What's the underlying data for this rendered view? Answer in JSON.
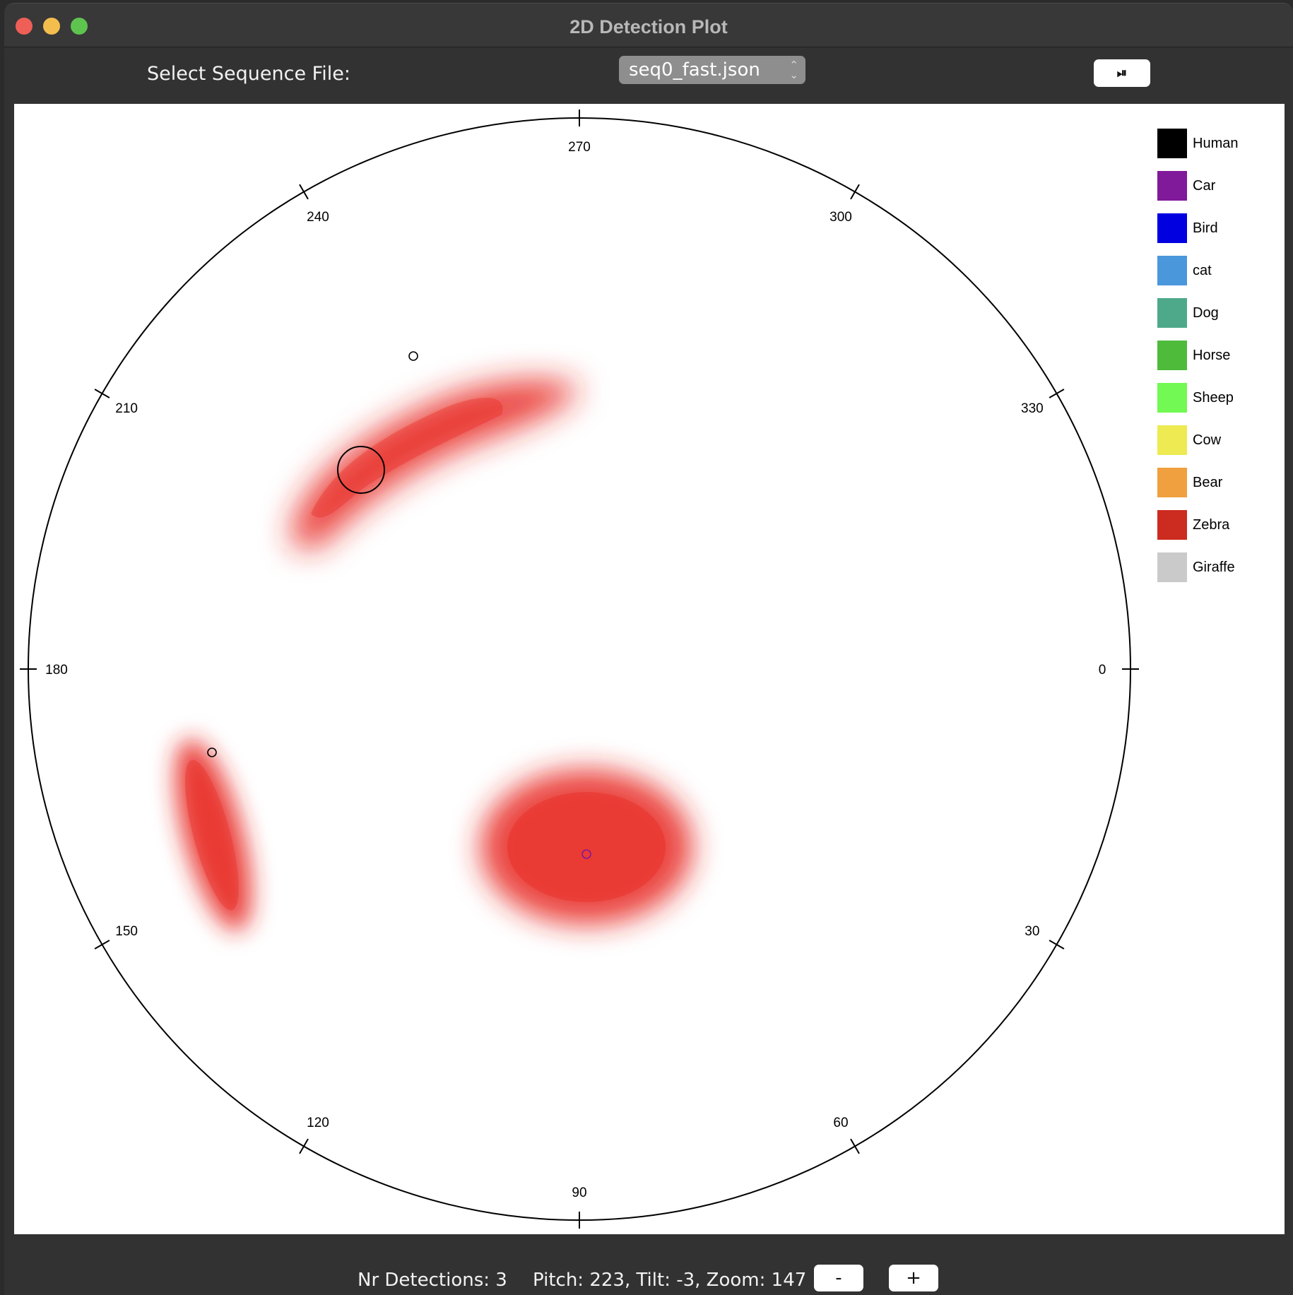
{
  "window": {
    "title": "2D Detection Plot"
  },
  "toolbar": {
    "sequence_label": "Select Sequence File:",
    "sequence_value": "seq0_fast.json",
    "play_pause_label": "⏯"
  },
  "plot": {
    "angle_labels": [
      "0",
      "30",
      "60",
      "90",
      "120",
      "150",
      "180",
      "210",
      "240",
      "270",
      "300",
      "330"
    ],
    "legend": [
      {
        "label": "Human",
        "color": "#000000"
      },
      {
        "label": "Car",
        "color": "#80199a"
      },
      {
        "label": "Bird",
        "color": "#0000e0"
      },
      {
        "label": "cat",
        "color": "#4a97dc"
      },
      {
        "label": "Dog",
        "color": "#4ea98a"
      },
      {
        "label": "Horse",
        "color": "#4fbb3b"
      },
      {
        "label": "Sheep",
        "color": "#72f953"
      },
      {
        "label": "Cow",
        "color": "#edea52"
      },
      {
        "label": "Bear",
        "color": "#f0a03e"
      },
      {
        "label": "Zebra",
        "color": "#cc2b20"
      },
      {
        "label": "Giraffe",
        "color": "#cacaca"
      }
    ],
    "detections": [
      {
        "class": "Zebra",
        "color": "#e8251c",
        "marker_color": "#000000"
      },
      {
        "class": "Zebra",
        "color": "#e8251c",
        "marker_color": "#000000"
      },
      {
        "class": "Zebra",
        "color": "#e8251c",
        "marker_color": "#80199a"
      }
    ]
  },
  "status": {
    "detections": "Nr Detections: 3",
    "camera": "Pitch: 223, Tilt: -3, Zoom: 147",
    "zoom_out_label": "-",
    "zoom_in_label": "+"
  }
}
